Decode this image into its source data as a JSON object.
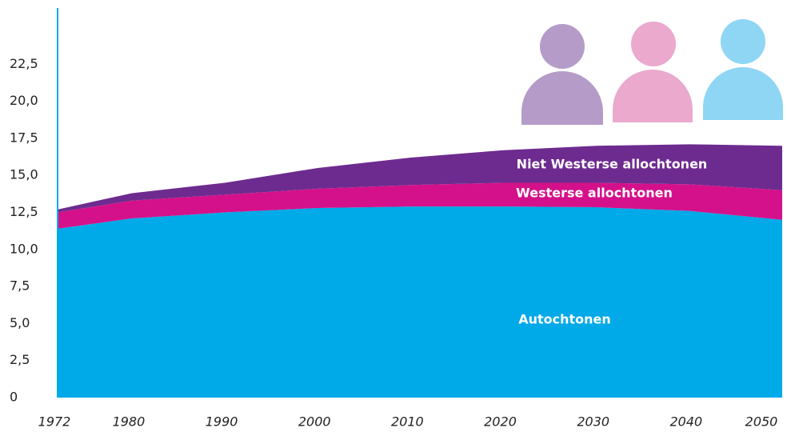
{
  "chart_data": {
    "type": "area",
    "stacked": true,
    "x": [
      1972,
      1980,
      1990,
      2000,
      2010,
      2020,
      2030,
      2040,
      2050
    ],
    "series": [
      {
        "name": "Autochtonen",
        "color": "#00a9e8",
        "values": [
          11.4,
          12.1,
          12.5,
          12.8,
          12.9,
          12.9,
          12.85,
          12.6,
          12.0
        ]
      },
      {
        "name": "Westerse allochtonen",
        "color": "#d4118a",
        "values": [
          1.1,
          1.2,
          1.2,
          1.3,
          1.45,
          1.6,
          1.65,
          1.8,
          2.0
        ]
      },
      {
        "name": "Niet Westerse allochtonen",
        "color": "#6e2b8f",
        "values": [
          0.2,
          0.5,
          0.8,
          1.4,
          1.85,
          2.2,
          2.5,
          2.7,
          3.0
        ]
      }
    ],
    "xlim": [
      1972,
      2050
    ],
    "xticks": [
      1972,
      1980,
      1990,
      2000,
      2010,
      2020,
      2030,
      2040,
      2050
    ],
    "ylim": [
      0,
      26.3
    ],
    "yticks": [
      0,
      {
        "value": 2.5,
        "label": "2,5"
      },
      {
        "value": 5,
        "label": "5,0"
      },
      {
        "value": 7.5,
        "label": "7,5"
      },
      {
        "value": 10,
        "label": "10,0"
      },
      {
        "value": 12.5,
        "label": "12,5"
      },
      {
        "value": 15,
        "label": "15,0"
      },
      {
        "value": 17.5,
        "label": "17,5"
      },
      {
        "value": 20,
        "label": "20,0"
      },
      {
        "value": 22.5,
        "label": "22,5"
      }
    ],
    "grid": false
  }
}
